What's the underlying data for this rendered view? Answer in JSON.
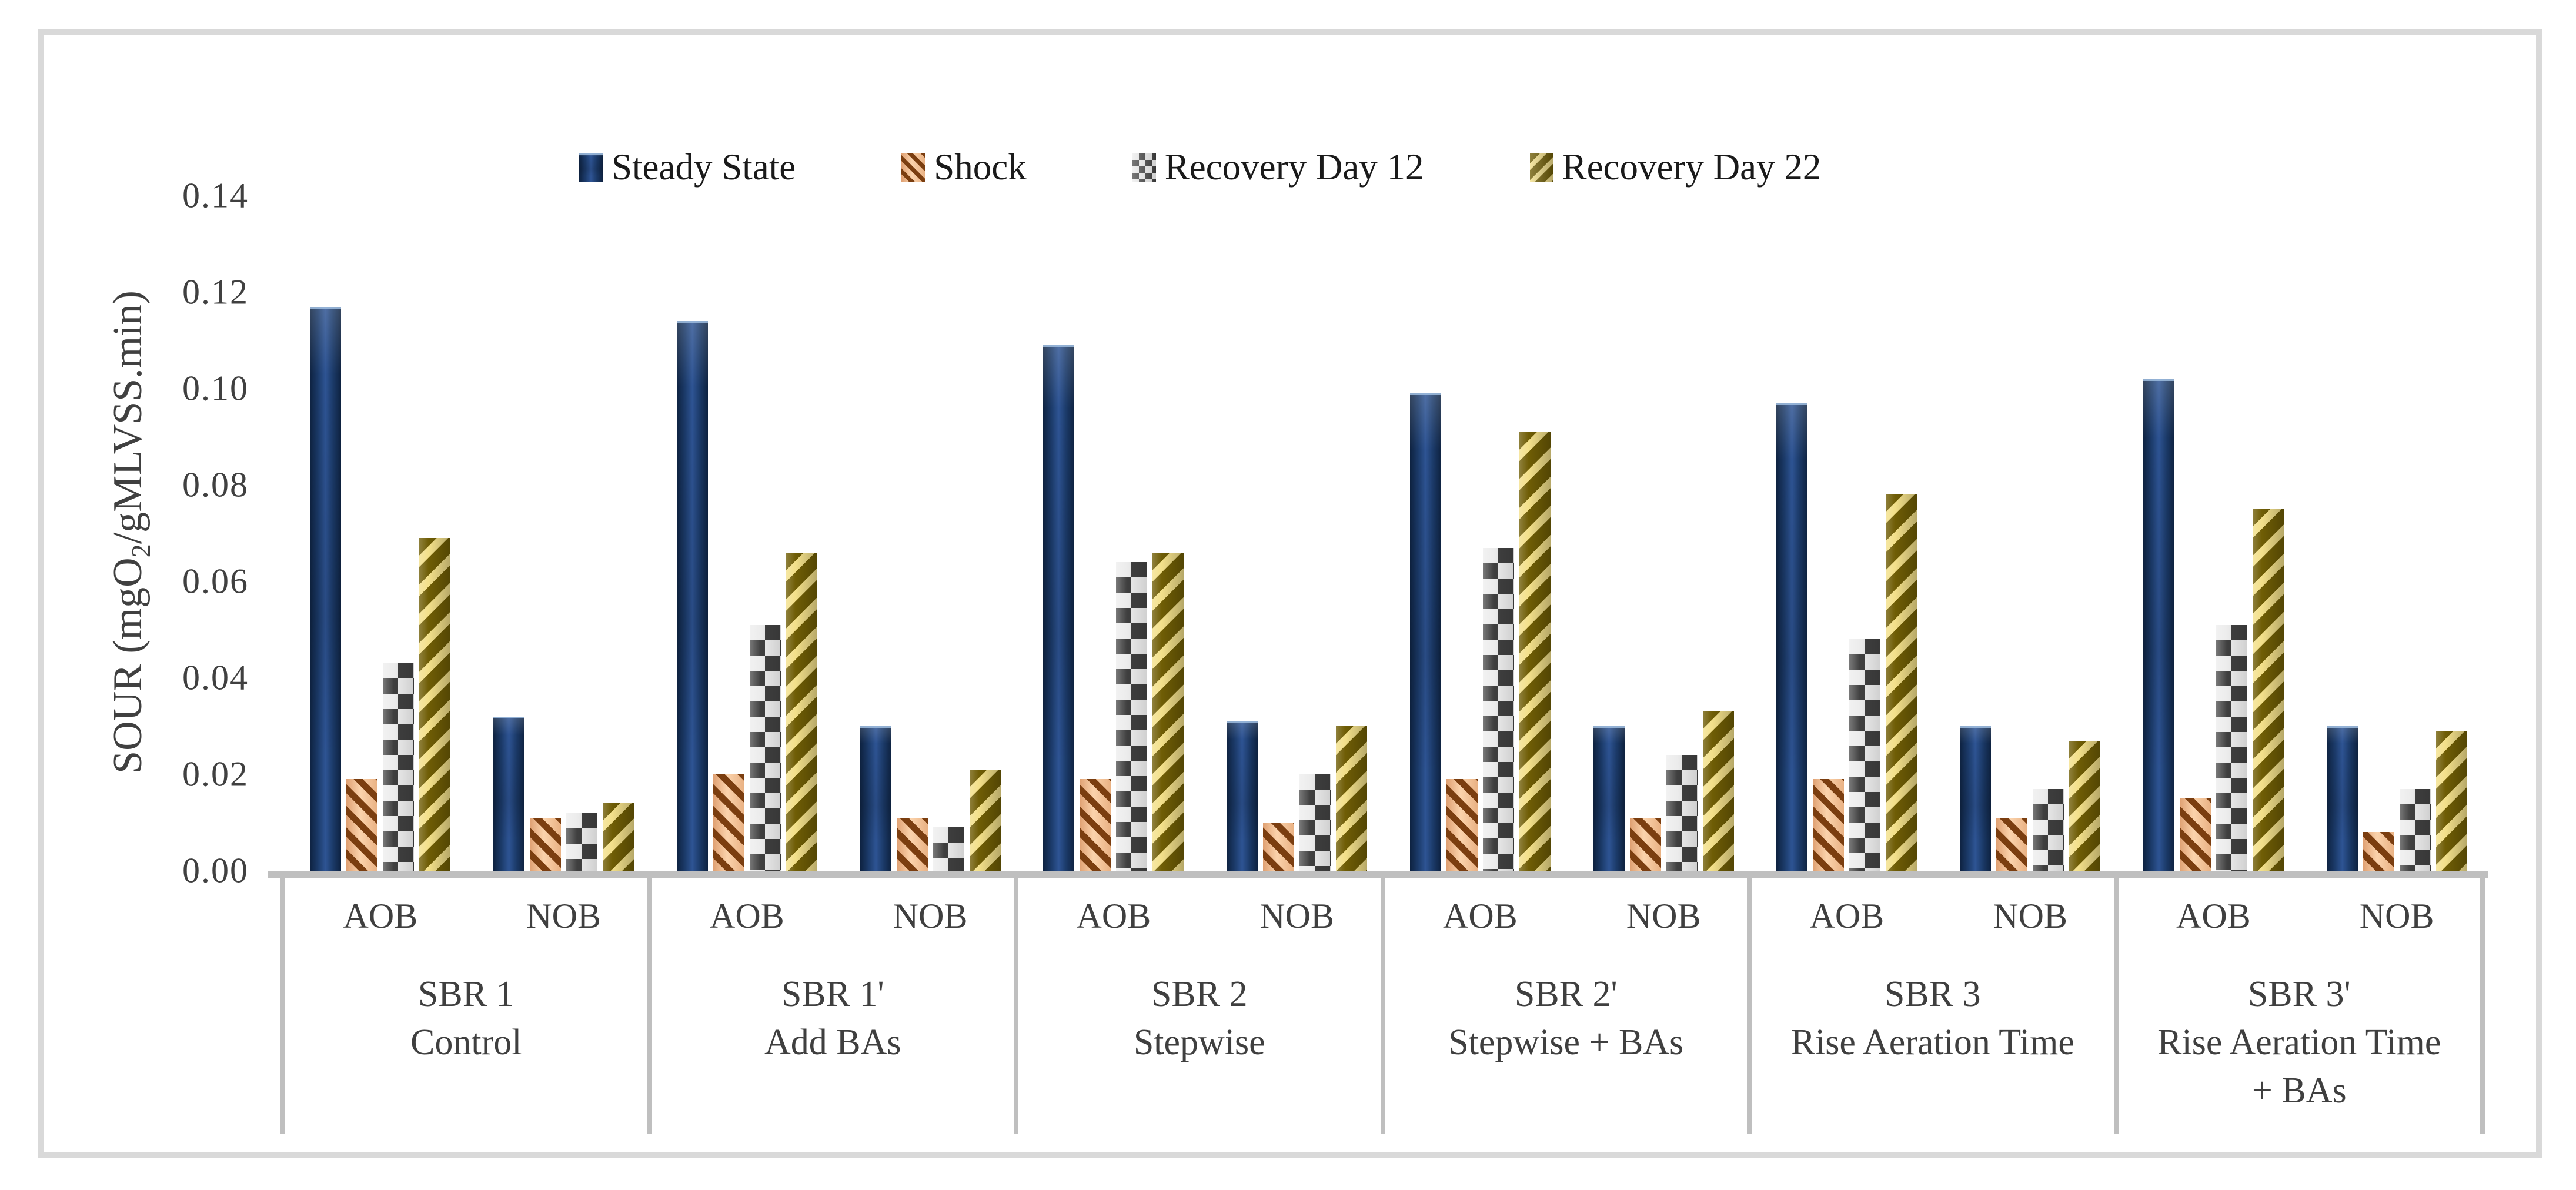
{
  "chart_data": {
    "type": "bar",
    "title": "",
    "ylabel": "SOUR (mgO2/gMLVSS.min)",
    "ylabel_parts": {
      "pre": "SOUR (mgO",
      "sub": "2",
      "post": "/gMLVSS.min)"
    },
    "xlabel": "",
    "ylim": [
      0,
      0.14
    ],
    "ytick_step": 0.02,
    "yticks": [
      "0.00",
      "0.02",
      "0.04",
      "0.06",
      "0.08",
      "0.10",
      "0.12",
      "0.14"
    ],
    "grid": false,
    "legend_position": "top",
    "legend": [
      "Steady State",
      "Shock",
      "Recovery Day 12",
      "Recovery Day 22"
    ],
    "groups": [
      {
        "reactor": "SBR 1",
        "condition_lines": [
          "Control"
        ],
        "subcategories": [
          "AOB",
          "NOB"
        ]
      },
      {
        "reactor": "SBR 1'",
        "condition_lines": [
          "Add BAs"
        ],
        "subcategories": [
          "AOB",
          "NOB"
        ]
      },
      {
        "reactor": "SBR 2",
        "condition_lines": [
          "Stepwise"
        ],
        "subcategories": [
          "AOB",
          "NOB"
        ]
      },
      {
        "reactor": "SBR 2'",
        "condition_lines": [
          "Stepwise + BAs"
        ],
        "subcategories": [
          "AOB",
          "NOB"
        ]
      },
      {
        "reactor": "SBR 3",
        "condition_lines": [
          "Rise Aeration Time"
        ],
        "subcategories": [
          "AOB",
          "NOB"
        ]
      },
      {
        "reactor": "SBR 3'",
        "condition_lines": [
          "Rise Aeration Time",
          "+ BAs"
        ],
        "subcategories": [
          "AOB",
          "NOB"
        ]
      }
    ],
    "series": [
      {
        "name": "Steady State",
        "pattern": "solid",
        "colors": [
          "#1F3864",
          "#2E5494"
        ],
        "values": {
          "SBR 1": {
            "AOB": 0.117,
            "NOB": 0.032
          },
          "SBR 1'": {
            "AOB": 0.114,
            "NOB": 0.03
          },
          "SBR 2": {
            "AOB": 0.109,
            "NOB": 0.031
          },
          "SBR 2'": {
            "AOB": 0.099,
            "NOB": 0.03
          },
          "SBR 3": {
            "AOB": 0.097,
            "NOB": 0.03
          },
          "SBR 3'": {
            "AOB": 0.102,
            "NOB": 0.03
          }
        }
      },
      {
        "name": "Shock",
        "pattern": "diagonal-stripe-down",
        "colors": [
          "#FBD3AC",
          "#7B3E10"
        ],
        "values": {
          "SBR 1": {
            "AOB": 0.019,
            "NOB": 0.011
          },
          "SBR 1'": {
            "AOB": 0.02,
            "NOB": 0.011
          },
          "SBR 2": {
            "AOB": 0.019,
            "NOB": 0.01
          },
          "SBR 2'": {
            "AOB": 0.019,
            "NOB": 0.011
          },
          "SBR 3": {
            "AOB": 0.019,
            "NOB": 0.011
          },
          "SBR 3'": {
            "AOB": 0.015,
            "NOB": 0.008
          }
        }
      },
      {
        "name": "Recovery Day 12",
        "pattern": "checker",
        "colors": [
          "#ECECEC",
          "#3F3F3F"
        ],
        "values": {
          "SBR 1": {
            "AOB": 0.043,
            "NOB": 0.012
          },
          "SBR 1'": {
            "AOB": 0.051,
            "NOB": 0.009
          },
          "SBR 2": {
            "AOB": 0.064,
            "NOB": 0.02
          },
          "SBR 2'": {
            "AOB": 0.067,
            "NOB": 0.024
          },
          "SBR 3": {
            "AOB": 0.048,
            "NOB": 0.017
          },
          "SBR 3'": {
            "AOB": 0.051,
            "NOB": 0.017
          }
        }
      },
      {
        "name": "Recovery Day 22",
        "pattern": "diagonal-stripe-up",
        "colors": [
          "#F3E08A",
          "#6F5D05"
        ],
        "values": {
          "SBR 1": {
            "AOB": 0.069,
            "NOB": 0.014
          },
          "SBR 1'": {
            "AOB": 0.066,
            "NOB": 0.021
          },
          "SBR 2": {
            "AOB": 0.066,
            "NOB": 0.03
          },
          "SBR 2'": {
            "AOB": 0.091,
            "NOB": 0.033
          },
          "SBR 3": {
            "AOB": 0.078,
            "NOB": 0.027
          },
          "SBR 3'": {
            "AOB": 0.075,
            "NOB": 0.029
          }
        }
      }
    ],
    "colors": {
      "axis_text": "#404040",
      "category_text": "#3F3F3F",
      "legend_text": "#1A1A1A",
      "baseline": "#BFBFBF",
      "figure_border": "#D9D9D9",
      "background": "#FFFFFF"
    }
  }
}
